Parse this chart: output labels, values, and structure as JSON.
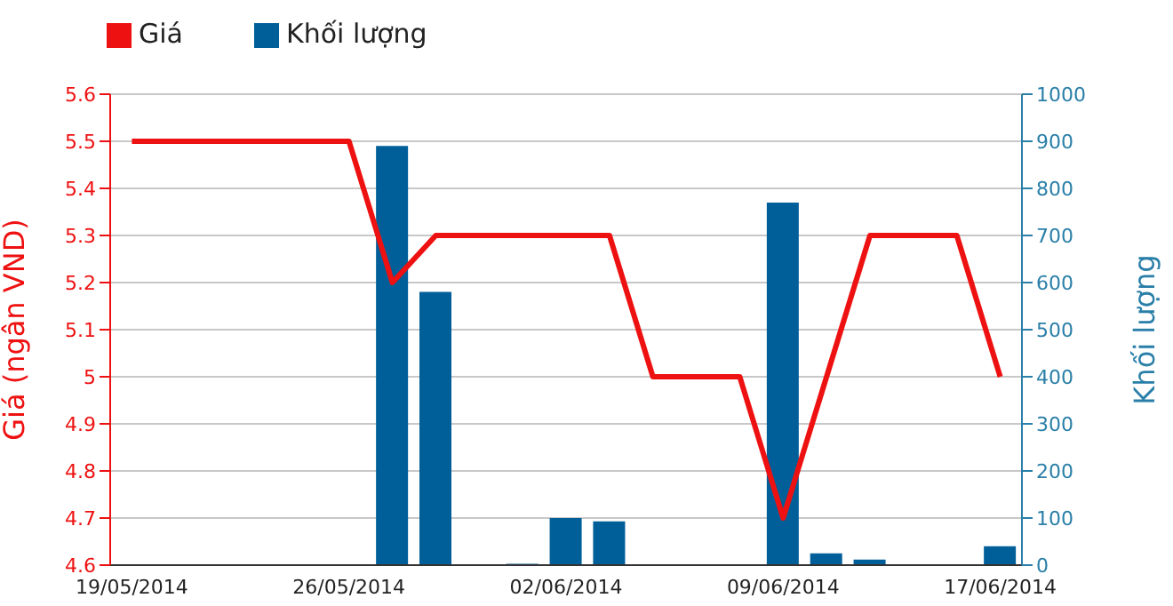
{
  "chart_data": {
    "type": "line",
    "ylabel": "Giá (ngân VND)",
    "y2label": "Khối lượng",
    "categories": [
      "19/05/2014",
      null,
      null,
      null,
      null,
      "26/05/2014",
      null,
      null,
      null,
      null,
      "02/06/2014",
      null,
      null,
      null,
      null,
      "09/06/2014",
      null,
      null,
      null,
      null,
      "17/06/2014"
    ],
    "series": [
      {
        "name": "Giá",
        "color": "#ee1111",
        "values": [
          5.5,
          5.5,
          5.5,
          5.5,
          5.5,
          5.5,
          5.2,
          5.3,
          5.3,
          5.3,
          5.3,
          5.3,
          5.0,
          5.0,
          5.0,
          4.7,
          5.0,
          5.3,
          5.3,
          5.3,
          5.0
        ]
      },
      {
        "name": "Khối lượng",
        "type": "bar",
        "axis": "y2",
        "color": "#005f99",
        "values": [
          null,
          null,
          null,
          null,
          null,
          null,
          890,
          580,
          null,
          3,
          100,
          93,
          null,
          null,
          null,
          770,
          25,
          12,
          null,
          null,
          40
        ]
      }
    ],
    "ylim": [
      4.6,
      5.6
    ],
    "yticks": [
      4.6,
      4.7,
      4.8,
      4.9,
      5,
      5.1,
      5.2,
      5.3,
      5.4,
      5.5,
      5.6
    ],
    "y2lim": [
      0,
      1000
    ],
    "y2ticks": [
      0,
      100,
      200,
      300,
      400,
      500,
      600,
      700,
      800,
      900,
      1000
    ],
    "grid": "y",
    "legend": "top left",
    "marker": "none",
    "line_style": "solid"
  }
}
